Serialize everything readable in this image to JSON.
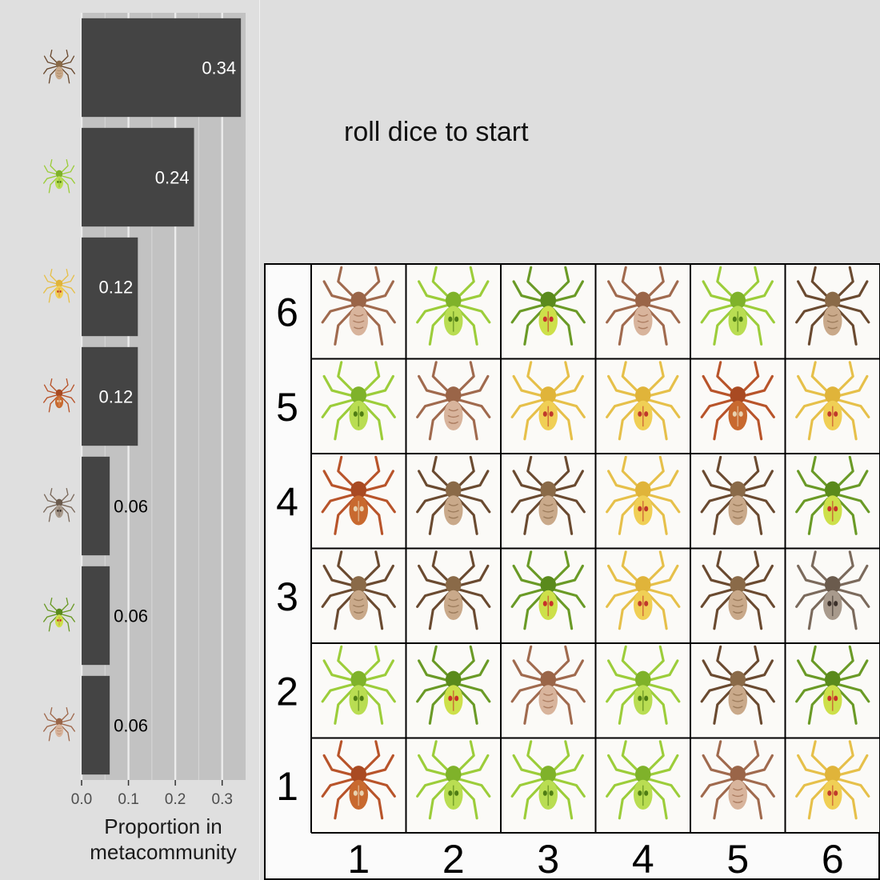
{
  "status_text": "roll dice to start",
  "chart_data": {
    "type": "bar",
    "orientation": "horizontal",
    "xlabel": "Proportion in\nmetacommunity",
    "xlim": [
      0,
      0.35
    ],
    "x_ticks": [
      "0.0",
      "0.1",
      "0.2",
      "0.3"
    ],
    "grid": true,
    "bar_color": "#444444",
    "categories": [
      "spider-sp1",
      "spider-sp2",
      "spider-sp3",
      "spider-sp4",
      "spider-sp5",
      "spider-sp6",
      "spider-sp7"
    ],
    "values": [
      0.34,
      0.24,
      0.12,
      0.12,
      0.06,
      0.06,
      0.06
    ],
    "value_labels": [
      "0.34",
      "0.24",
      "0.12",
      "0.12",
      "0.06",
      "0.06",
      "0.06"
    ]
  },
  "species": {
    "sp1": {
      "name": "striped brown spider",
      "legs": "#6a4a30",
      "body": "#8a6a48",
      "abdomen": "#c9a98a",
      "mark": null
    },
    "sp2": {
      "name": "lime lynx spider",
      "legs": "#9ccd3a",
      "body": "#7fb22a",
      "abdomen": "#b9dd52",
      "mark": "#4f7d14"
    },
    "sp3": {
      "name": "yellow crab spider",
      "legs": "#e6c04a",
      "body": "#e0b43a",
      "abdomen": "#f0cf55",
      "mark": "#c0392b"
    },
    "sp4": {
      "name": "orange orb weaver",
      "legs": "#b8542a",
      "body": "#a94a22",
      "abdomen": "#c8692f",
      "mark": "#e8d2b0"
    },
    "sp5": {
      "name": "pale gray spider",
      "legs": "#7b6a5c",
      "body": "#6b5b4d",
      "abdomen": "#a89a8c",
      "mark": "#3b302a"
    },
    "sp6": {
      "name": "green red-spot spider",
      "legs": "#6a9a26",
      "body": "#5a8a1c",
      "abdomen": "#cde04a",
      "mark": "#c8302a"
    },
    "sp7": {
      "name": "slender tan spider",
      "legs": "#a06a4e",
      "body": "#9a6548",
      "abdomen": "#d8b49c",
      "mark": null
    }
  },
  "board": {
    "row_labels": [
      "6",
      "5",
      "4",
      "3",
      "2",
      "1"
    ],
    "col_labels": [
      "1",
      "2",
      "3",
      "4",
      "5",
      "6"
    ],
    "cells": [
      [
        "sp7",
        "sp2",
        "sp6",
        "sp7",
        "sp2",
        "sp1"
      ],
      [
        "sp2",
        "sp7",
        "sp3",
        "sp3",
        "sp4",
        "sp3"
      ],
      [
        "sp4",
        "sp1",
        "sp1",
        "sp3",
        "sp1",
        "sp6"
      ],
      [
        "sp1",
        "sp1",
        "sp6",
        "sp3",
        "sp1",
        "sp5"
      ],
      [
        "sp2",
        "sp6",
        "sp7",
        "sp2",
        "sp1",
        "sp6"
      ],
      [
        "sp4",
        "sp2",
        "sp2",
        "sp2",
        "sp7",
        "sp3"
      ]
    ]
  }
}
